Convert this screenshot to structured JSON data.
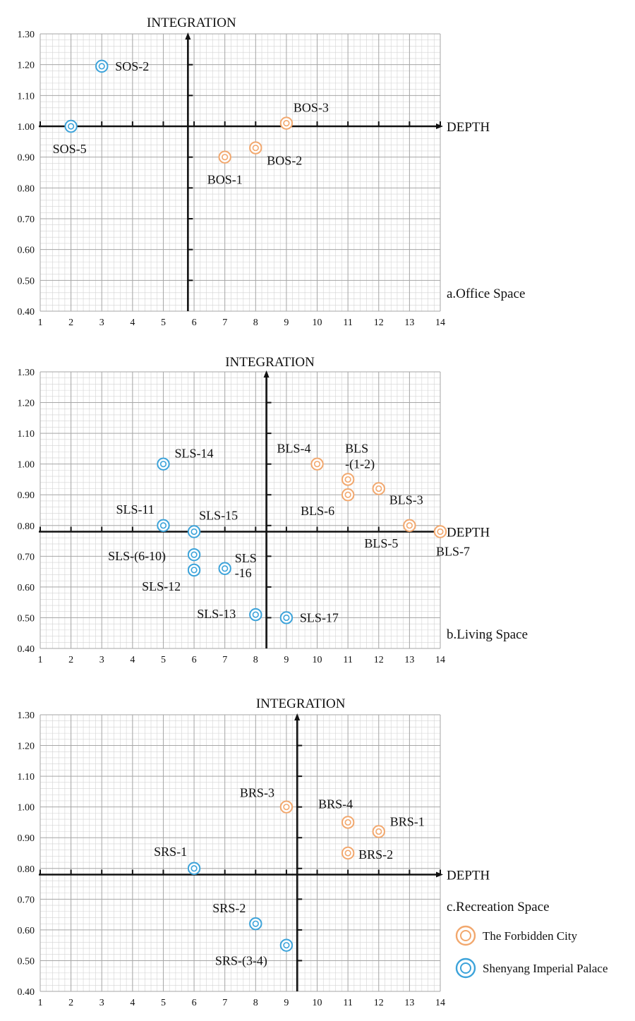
{
  "colors": {
    "forbidden": "#F2A86E",
    "shenyang": "#3CA3DA",
    "grid_major": "#a6a6a6",
    "grid_minor": "#d3d3d3",
    "axis": "#111111"
  },
  "legend": {
    "items": [
      {
        "label": "The Forbidden City",
        "color_key": "forbidden"
      },
      {
        "label": "Shenyang Imperial Palace",
        "color_key": "shenyang"
      }
    ]
  },
  "chart_data": [
    {
      "type": "scatter",
      "panel_caption": "a.Office Space",
      "xlabel": "DEPTH",
      "ylabel": "INTEGRATION",
      "xlim": [
        1,
        14
      ],
      "ylim": [
        0.4,
        1.3
      ],
      "x_ticks": [
        "1",
        "2",
        "3",
        "4",
        "5",
        "6",
        "7",
        "8",
        "9",
        "10",
        "11",
        "12",
        "13",
        "14"
      ],
      "y_ticks": [
        "0.40",
        "0.50",
        "0.60",
        "0.70",
        "0.80",
        "0.90",
        "1.00",
        "1.10",
        "1.20",
        "1.30"
      ],
      "cross_x": 5.8,
      "cross_y": 1.0,
      "series": [
        {
          "name": "The Forbidden City",
          "color_key": "forbidden",
          "points": [
            {
              "label": "BOS-1",
              "x": 7,
              "y": 0.9
            },
            {
              "label": "BOS-2",
              "x": 8,
              "y": 0.93
            },
            {
              "label": "BOS-3",
              "x": 9,
              "y": 1.01
            }
          ]
        },
        {
          "name": "Shenyang Imperial Palace",
          "color_key": "shenyang",
          "points": [
            {
              "label": "SOS-2",
              "x": 3,
              "y": 1.195
            },
            {
              "label": "SOS-5",
              "x": 2,
              "y": 1.0
            }
          ]
        }
      ]
    },
    {
      "type": "scatter",
      "panel_caption": "b.Living Space",
      "xlabel": "DEPTH",
      "ylabel": "INTEGRATION",
      "xlim": [
        1,
        14
      ],
      "ylim": [
        0.4,
        1.3
      ],
      "x_ticks": [
        "1",
        "2",
        "3",
        "4",
        "5",
        "6",
        "7",
        "8",
        "9",
        "10",
        "11",
        "12",
        "13",
        "14"
      ],
      "y_ticks": [
        "0.40",
        "0.50",
        "0.60",
        "0.70",
        "0.80",
        "0.90",
        "1.00",
        "1.10",
        "1.20",
        "1.30"
      ],
      "cross_x": 8.35,
      "cross_y": 0.78,
      "series": [
        {
          "name": "The Forbidden City",
          "color_key": "forbidden",
          "points": [
            {
              "label": "BLS-4",
              "x": 10,
              "y": 1.0
            },
            {
              "label": "BLS (1-2)",
              "x": 11,
              "y": 0.95
            },
            {
              "label": "BLS-6",
              "x": 11,
              "y": 0.9
            },
            {
              "label": "BLS-3",
              "x": 12,
              "y": 0.92
            },
            {
              "label": "BLS-5",
              "x": 13,
              "y": 0.8
            },
            {
              "label": "BLS-7",
              "x": 14,
              "y": 0.78
            }
          ]
        },
        {
          "name": "Shenyang Imperial Palace",
          "color_key": "shenyang",
          "points": [
            {
              "label": "SLS-14",
              "x": 5,
              "y": 1.0
            },
            {
              "label": "SLS-11",
              "x": 5,
              "y": 0.8
            },
            {
              "label": "SLS-15",
              "x": 6,
              "y": 0.78
            },
            {
              "label": "SLS-(6-10)",
              "x": 6,
              "y": 0.705
            },
            {
              "label": "SLS-12",
              "x": 6,
              "y": 0.655
            },
            {
              "label": "SLS -16",
              "x": 7,
              "y": 0.66
            },
            {
              "label": "SLS-13",
              "x": 8,
              "y": 0.51
            },
            {
              "label": "SLS-17",
              "x": 9,
              "y": 0.5
            }
          ]
        }
      ]
    },
    {
      "type": "scatter",
      "panel_caption": "c.Recreation Space",
      "xlabel": "DEPTH",
      "ylabel": "INTEGRATION",
      "xlim": [
        1,
        14
      ],
      "ylim": [
        0.4,
        1.3
      ],
      "x_ticks": [
        "1",
        "2",
        "3",
        "4",
        "5",
        "6",
        "7",
        "8",
        "9",
        "10",
        "11",
        "12",
        "13",
        "14"
      ],
      "y_ticks": [
        "0.40",
        "0.50",
        "0.60",
        "0.70",
        "0.80",
        "0.90",
        "1.00",
        "1.10",
        "1.20",
        "1.30"
      ],
      "cross_x": 9.35,
      "cross_y": 0.78,
      "series": [
        {
          "name": "The Forbidden City",
          "color_key": "forbidden",
          "points": [
            {
              "label": "BRS-3",
              "x": 9,
              "y": 1.0
            },
            {
              "label": "BRS-4",
              "x": 11,
              "y": 0.95
            },
            {
              "label": "BRS-1",
              "x": 12,
              "y": 0.92
            },
            {
              "label": "BRS-2",
              "x": 11,
              "y": 0.85
            }
          ]
        },
        {
          "name": "Shenyang Imperial Palace",
          "color_key": "shenyang",
          "points": [
            {
              "label": "SRS-1",
              "x": 6,
              "y": 0.8
            },
            {
              "label": "SRS-2",
              "x": 8,
              "y": 0.62
            },
            {
              "label": "SRS-(3-4)",
              "x": 9,
              "y": 0.55
            }
          ]
        }
      ]
    }
  ]
}
